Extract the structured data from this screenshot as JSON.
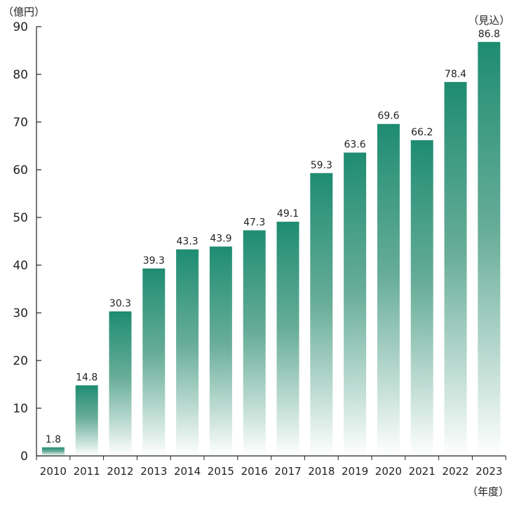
{
  "chart_data": {
    "type": "bar",
    "ylabel": "（億円）",
    "xlabel": "（年度）",
    "categories": [
      "2010",
      "2011",
      "2012",
      "2013",
      "2014",
      "2015",
      "2016",
      "2017",
      "2018",
      "2019",
      "2020",
      "2021",
      "2022",
      "2023"
    ],
    "values": [
      1.8,
      14.8,
      30.3,
      39.3,
      43.3,
      43.9,
      47.3,
      49.1,
      59.3,
      63.6,
      69.6,
      66.2,
      78.4,
      86.8
    ],
    "value_labels": [
      "1.8",
      "14.8",
      "30.3",
      "39.3",
      "43.3",
      "43.9",
      "47.3",
      "49.1",
      "59.3",
      "63.6",
      "69.6",
      "66.2",
      "78.4",
      "86.8"
    ],
    "annotations": [
      {
        "category": "2023",
        "text": "（見込）"
      }
    ],
    "ylim": [
      0,
      90
    ],
    "yticks": [
      0,
      10,
      20,
      30,
      40,
      50,
      60,
      70,
      80,
      90
    ],
    "grid": false,
    "colors": {
      "bar_top": "#1e8c72",
      "bar_bottom": "#ffffff",
      "axis": "#222222"
    }
  }
}
